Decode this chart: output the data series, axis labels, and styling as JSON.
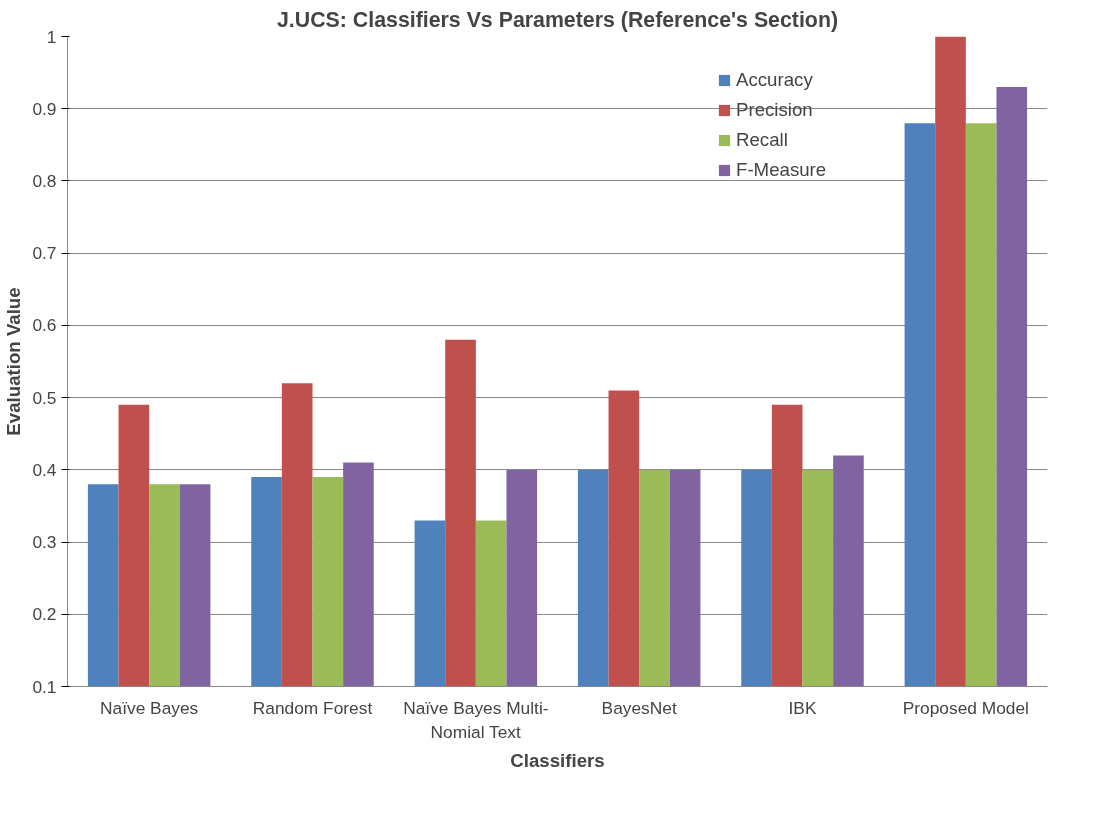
{
  "chart_data": {
    "type": "bar",
    "title": "J.UCS: Classifiers Vs Parameters (Reference's Section)",
    "xlabel": "Classifiers",
    "ylabel": "Evaluation Value",
    "categories": [
      "Naïve Bayes",
      "Random Forest",
      "Naïve Bayes Multi-Nomial Text",
      "BayesNet",
      "IBK",
      "Proposed Model"
    ],
    "series": [
      {
        "name": "Accuracy",
        "color": "#4f81bd",
        "values": [
          0.38,
          0.39,
          0.33,
          0.4,
          0.4,
          0.88
        ]
      },
      {
        "name": "Precision",
        "color": "#c0504d",
        "values": [
          0.49,
          0.52,
          0.58,
          0.51,
          0.49,
          1.0
        ]
      },
      {
        "name": "Recall",
        "color": "#9bbb59",
        "values": [
          0.38,
          0.39,
          0.33,
          0.4,
          0.4,
          0.88
        ]
      },
      {
        "name": "F-Measure",
        "color": "#8064a2",
        "values": [
          0.38,
          0.41,
          0.4,
          0.4,
          0.42,
          0.93
        ]
      }
    ],
    "ylim": [
      0.1,
      1
    ],
    "yticks": [
      0.1,
      0.2,
      0.3,
      0.4,
      0.5,
      0.6,
      0.7,
      0.8,
      0.9,
      1
    ],
    "grid": "y",
    "legend": "top right"
  }
}
